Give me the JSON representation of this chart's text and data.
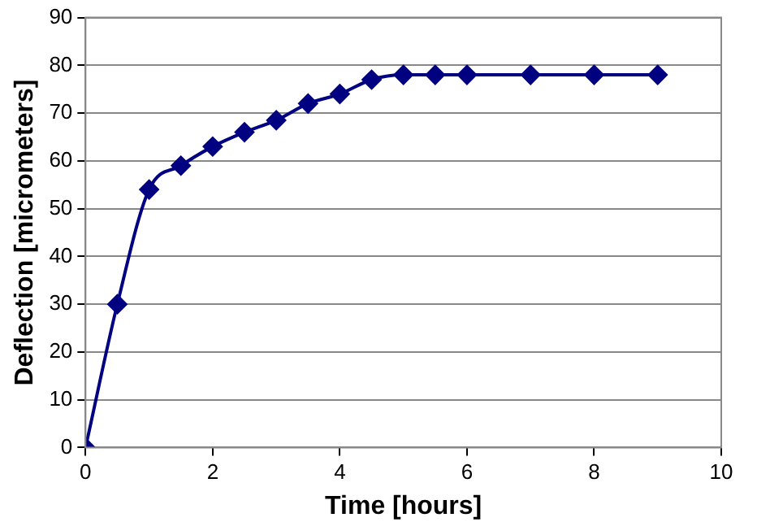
{
  "chart_data": {
    "type": "line",
    "xlabel": "Time [hours]",
    "ylabel": "Deflection [micrometers]",
    "x": [
      0,
      0.5,
      1,
      1.5,
      2,
      2.5,
      3,
      3.5,
      4,
      4.5,
      5,
      5.5,
      6,
      7,
      8,
      9
    ],
    "series": [
      {
        "color": "#000080",
        "values": [
          0,
          30,
          54,
          59,
          63,
          66,
          68.5,
          72,
          74,
          77,
          78,
          78,
          78,
          78,
          78,
          78
        ]
      }
    ],
    "xlim": [
      0,
      10
    ],
    "xticks": [
      0,
      2,
      4,
      6,
      8,
      10
    ],
    "ylim": [
      0,
      90
    ],
    "yticks": [
      0,
      10,
      20,
      30,
      40,
      50,
      60,
      70,
      80,
      90
    ],
    "grid": "y",
    "legend": false,
    "marker": "diamond",
    "line_style": "solid"
  }
}
